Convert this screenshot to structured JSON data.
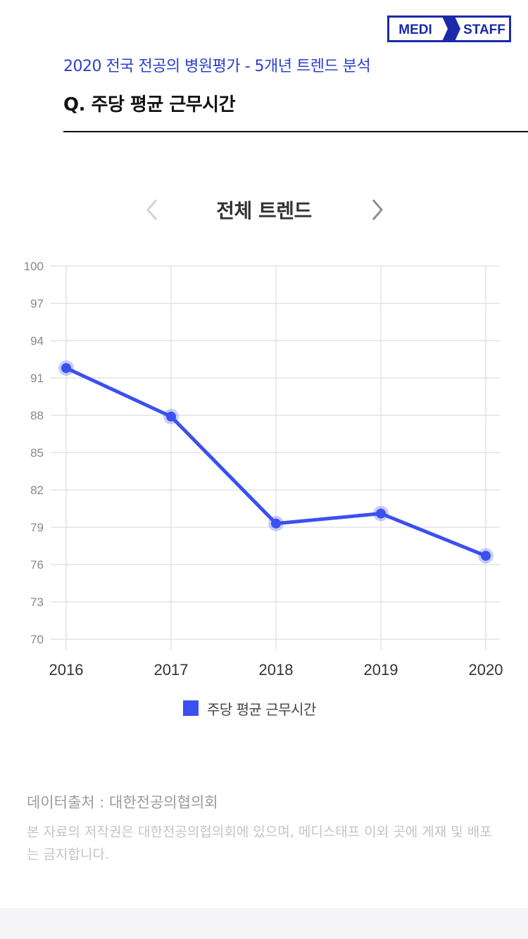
{
  "logo": {
    "left_text": "MEDI",
    "right_text": "STAFF",
    "color": "#1a2aa8"
  },
  "header": {
    "subtitle": "2020 전국 전공의 병원평가 - 5개년 트렌드 분석",
    "question": "Q. 주당 평균 근무시간"
  },
  "nav": {
    "prev_icon": "chevron-left-icon",
    "next_icon": "chevron-right-icon"
  },
  "chart_data": {
    "type": "line",
    "title": "전체 트렌드",
    "categories": [
      "2016",
      "2017",
      "2018",
      "2019",
      "2020"
    ],
    "series": [
      {
        "name": "주당 평균 근무시간",
        "values": [
          91.8,
          87.9,
          79.3,
          80.1,
          76.7
        ],
        "color": "#3a50f0"
      }
    ],
    "yticks": [
      "100",
      "97",
      "94",
      "91",
      "88",
      "85",
      "82",
      "79",
      "76",
      "73",
      "70"
    ],
    "ylim": [
      70,
      100
    ],
    "grid": true,
    "legend_position": "bottom"
  },
  "footer": {
    "source": "데이터출처 : 대한전공의협의회",
    "copyright": "본 자료의 저작권은 대한전공의협의회에 있으며, 메디스태프 이외 곳에 게재 및 배포는 금지합니다."
  }
}
